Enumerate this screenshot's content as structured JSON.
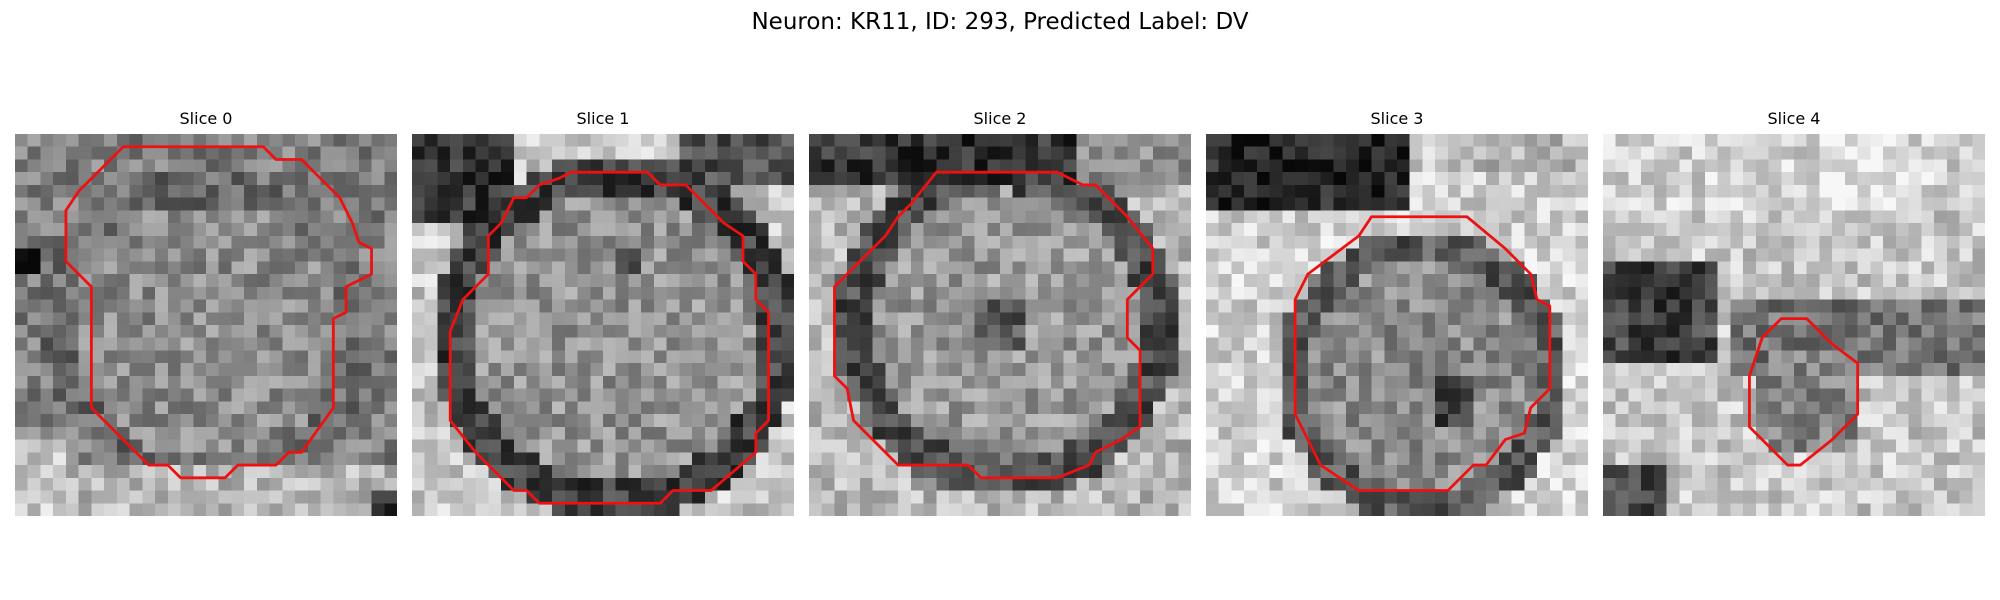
{
  "figure": {
    "title": "Neuron: KR11, ID: 293, Predicted Label: DV"
  },
  "panels": [
    {
      "title": "Slice 0"
    },
    {
      "title": "Slice 1"
    },
    {
      "title": "Slice 2"
    },
    {
      "title": "Slice 3"
    },
    {
      "title": "Slice 4"
    }
  ],
  "colors": {
    "contour": "#ee1111",
    "background": "#ffffff"
  }
}
